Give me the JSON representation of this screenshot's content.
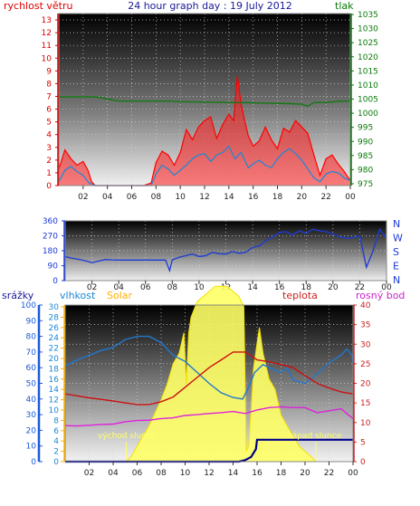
{
  "chart_data": [
    {
      "type": "line",
      "title": "24 hour graph day : 19 July 2012",
      "left_axis_title": "rychlost větru",
      "right_axis_title": "tlak",
      "y_left_ticks": [
        "0",
        "1",
        "2",
        "3",
        "4",
        "5",
        "6",
        "7",
        "8",
        "9",
        "10",
        "11",
        "12",
        "13"
      ],
      "y_right_ticks": [
        "975",
        "980",
        "985",
        "990",
        "995",
        "1000",
        "1005",
        "1010",
        "1015",
        "1020",
        "1025",
        "1030",
        "1035"
      ],
      "x_ticks": [
        "02",
        "04",
        "06",
        "08",
        "10",
        "12",
        "14",
        "16",
        "18",
        "20",
        "22",
        "00"
      ],
      "ylim_left": [
        0,
        13.5
      ],
      "ylim_right": [
        975,
        1035
      ],
      "xlim_hours": [
        0,
        24
      ],
      "grid": true,
      "colors": {
        "gust": "#ff0000",
        "avg_wind": "#1a88d8",
        "pressure": "#127a12",
        "left_axis": "#dd0000",
        "right_axis": "#0a7a0a"
      },
      "series": [
        {
          "name": "gust",
          "x": [
            0,
            0.5,
            1,
            1.5,
            2,
            2.4,
            2.7,
            3,
            4,
            5,
            6,
            7,
            7.6,
            8,
            8.5,
            9,
            9.5,
            10,
            10.5,
            11,
            11.5,
            12,
            12.5,
            13,
            13.5,
            14,
            14.4,
            14.7,
            15,
            15.3,
            15.6,
            16,
            16.5,
            17,
            17.5,
            18,
            18.5,
            19,
            19.5,
            20,
            20.5,
            21,
            21.5,
            22,
            22.5,
            23,
            23.5,
            24
          ],
          "y": [
            1.3,
            2.8,
            2.1,
            1.6,
            1.9,
            1.2,
            0.3,
            0,
            0,
            0,
            0,
            0,
            0.2,
            1.8,
            2.7,
            2.4,
            1.6,
            2.6,
            4.4,
            3.6,
            4.6,
            5.1,
            5.4,
            3.7,
            4.8,
            5.6,
            5.1,
            8.6,
            6.4,
            5.1,
            3.9,
            3.1,
            3.5,
            4.6,
            3.6,
            2.9,
            4.5,
            4.2,
            5.1,
            4.6,
            4.1,
            2.4,
            0.8,
            2.1,
            2.4,
            1.7,
            1.1,
            0.4
          ]
        },
        {
          "name": "avg_wind",
          "x": [
            0,
            0.5,
            1,
            1.5,
            2,
            2.5,
            3,
            4,
            5,
            6,
            7,
            7.6,
            8,
            8.5,
            9,
            9.5,
            10,
            10.5,
            11,
            11.5,
            12,
            12.5,
            13,
            13.5,
            14,
            14.5,
            15,
            15.3,
            15.6,
            16,
            16.5,
            17,
            17.5,
            18,
            18.5,
            19,
            19.5,
            20,
            20.5,
            21,
            21.5,
            22,
            22.5,
            23,
            23.5,
            24
          ],
          "y": [
            0.3,
            1.2,
            1.5,
            1.1,
            0.8,
            0.2,
            0,
            0,
            0,
            0,
            0,
            0,
            0.9,
            1.6,
            1.3,
            0.8,
            1.2,
            1.6,
            2.1,
            2.4,
            2.5,
            1.9,
            2.4,
            2.6,
            3.1,
            2.1,
            2.6,
            2.0,
            1.4,
            1.7,
            2.0,
            1.6,
            1.4,
            2.1,
            2.6,
            2.9,
            2.5,
            2.0,
            1.3,
            0.6,
            0.3,
            0.9,
            1.1,
            1.0,
            0.6,
            0.4
          ]
        },
        {
          "name": "pressure",
          "x": [
            0,
            3,
            5,
            7,
            9,
            10,
            11,
            14,
            16,
            17,
            19,
            20,
            20.5,
            21,
            22,
            23,
            24
          ],
          "y": [
            1005.8,
            1005.8,
            1004.3,
            1004.3,
            1004.3,
            1004.1,
            1004,
            1003.8,
            1003.7,
            1003.6,
            1003.4,
            1003.2,
            1002.5,
            1003.8,
            1003.8,
            1004.2,
            1004.4
          ]
        }
      ]
    },
    {
      "type": "line",
      "right_axis_labels": [
        "N",
        "W",
        "S",
        "E",
        "N"
      ],
      "y_left_ticks": [
        "0",
        "90",
        "180",
        "270",
        "360"
      ],
      "x_ticks": [
        "02",
        "04",
        "06",
        "08",
        "10",
        "12",
        "14",
        "16",
        "18",
        "20",
        "22",
        "00"
      ],
      "ylim": [
        0,
        360
      ],
      "xlim_hours": [
        0,
        24
      ],
      "grid": true,
      "colors": {
        "direction": "#1a3ad8"
      },
      "series": [
        {
          "name": "wind_direction",
          "x": [
            0,
            0.5,
            1,
            1.5,
            2,
            2.5,
            3,
            3.5,
            4,
            4.5,
            5,
            5.5,
            6,
            6.5,
            7,
            7.5,
            7.8,
            8,
            8.5,
            9,
            9.5,
            10,
            10.5,
            11,
            11.5,
            12,
            12.5,
            13,
            13.5,
            14,
            14.5,
            15,
            15.3,
            15.6,
            16,
            16.5,
            17,
            17.5,
            18,
            18.5,
            19,
            19.5,
            20,
            20.5,
            21,
            21.5,
            22,
            22.5,
            23,
            23.5,
            24
          ],
          "y": [
            145,
            135,
            128,
            120,
            108,
            118,
            127,
            125,
            124,
            124,
            124,
            124,
            124,
            124,
            124,
            124,
            60,
            125,
            140,
            150,
            160,
            145,
            150,
            170,
            162,
            160,
            175,
            165,
            172,
            200,
            210,
            240,
            255,
            268,
            290,
            295,
            275,
            300,
            285,
            310,
            300,
            295,
            280,
            265,
            255,
            260,
            270,
            80,
            180,
            310,
            255
          ]
        }
      ]
    },
    {
      "type": "area",
      "header_labels": {
        "rain": "srážky",
        "humidity": "vlhkost",
        "solar": "Solar",
        "temperature": "teplota",
        "dew_point": "rosný bod"
      },
      "sunrise_label": "východ slunce",
      "sunset_label": "západ slunce",
      "y_rain_ticks": [
        "0",
        "10",
        "20",
        "30",
        "40",
        "50",
        "60",
        "70",
        "80",
        "90",
        "100"
      ],
      "y_mid_ticks": [
        "0",
        "2",
        "4",
        "6",
        "8",
        "10",
        "12",
        "14",
        "16",
        "18",
        "20",
        "22",
        "24",
        "26",
        "28",
        "30"
      ],
      "y_right_ticks": [
        "0",
        "5",
        "10",
        "15",
        "20",
        "25",
        "30",
        "35",
        "40"
      ],
      "x_ticks": [
        "02",
        "04",
        "06",
        "08",
        "10",
        "12",
        "14",
        "16",
        "18",
        "20",
        "22",
        "00"
      ],
      "ylim_percent": [
        0,
        100
      ],
      "ylim_temperature": [
        0,
        40
      ],
      "xlim_hours": [
        0,
        24
      ],
      "sunrise_hour": 5.1,
      "sunset_hour": 20.9,
      "grid": true,
      "colors": {
        "humidity": "#2078d0",
        "solar": "#ffff66",
        "temperature": "#cc1111",
        "dew_point": "#dd22dd",
        "rain": "#00008b",
        "rain_axis": "#1a5ad8",
        "humidity_axis": "#1a88d8",
        "solar_axis": "#ffb000",
        "temperature_axis": "#cc2222",
        "dew_axis": "#cc22cc"
      },
      "series": [
        {
          "name": "humidity",
          "x": [
            0,
            1,
            2,
            3,
            4,
            5,
            6,
            7,
            8,
            9,
            10,
            11,
            12,
            13,
            14,
            14.8,
            15.2,
            15.8,
            16.5,
            17,
            18,
            18.5,
            19,
            20,
            21,
            22,
            23,
            23.5,
            23.9,
            24
          ],
          "y": [
            61,
            65,
            68,
            71,
            73,
            78,
            80,
            80,
            76,
            68,
            64,
            57,
            50,
            44,
            41,
            40,
            46,
            57,
            62,
            60,
            57,
            60,
            52,
            50,
            56,
            63,
            68,
            72,
            68,
            63
          ]
        },
        {
          "name": "solar",
          "x": [
            5.1,
            5.5,
            6,
            7,
            8,
            8.5,
            9,
            9.5,
            9.9,
            10.1,
            10.3,
            10.5,
            11,
            11.5,
            12,
            12.5,
            13,
            13.5,
            14,
            14.5,
            14.9,
            15.1,
            15.3,
            15.5,
            15.7,
            16,
            16.2,
            16.5,
            17,
            17.5,
            18,
            18.5,
            19,
            19.5,
            20,
            20.5,
            20.9
          ],
          "y": [
            0,
            1,
            3,
            7,
            12,
            15,
            19,
            21,
            25,
            15,
            25,
            28,
            31,
            32,
            33,
            34,
            34,
            34,
            33,
            32,
            30,
            2,
            3,
            10,
            18,
            23,
            26,
            21,
            16,
            14,
            9,
            7,
            5,
            3,
            2,
            1,
            0
          ]
        },
        {
          "name": "temperature",
          "x": [
            0,
            1,
            2,
            3,
            4,
            5,
            6,
            7,
            8,
            9,
            10,
            11,
            12,
            13,
            14,
            15,
            16,
            17,
            18,
            19,
            20,
            21,
            22,
            23,
            24
          ],
          "y": [
            17.3,
            16.8,
            16.3,
            15.9,
            15.5,
            15.0,
            14.6,
            14.6,
            15.3,
            16.5,
            19.0,
            21.5,
            24.0,
            26.0,
            28.0,
            28.0,
            26.0,
            25.5,
            24.8,
            24.0,
            22.0,
            20.0,
            18.8,
            17.8,
            17.3
          ]
        },
        {
          "name": "dew_point",
          "x": [
            0,
            1,
            2,
            3,
            4,
            5,
            6,
            7,
            8,
            9,
            10,
            11,
            12,
            13,
            14,
            15,
            16,
            17,
            18,
            19,
            20,
            21,
            22,
            23,
            24
          ],
          "y": [
            9.2,
            9.1,
            9.3,
            9.5,
            9.6,
            10.2,
            10.5,
            10.6,
            11.0,
            11.2,
            11.8,
            12.0,
            12.3,
            12.5,
            12.8,
            12.3,
            13.2,
            13.8,
            14.0,
            13.8,
            13.8,
            12.5,
            13.0,
            13.5,
            11.0
          ]
        },
        {
          "name": "rain",
          "x": [
            0,
            14.5,
            15,
            15.5,
            15.9,
            16,
            24
          ],
          "y": [
            0,
            0,
            1,
            3,
            8,
            14,
            14
          ]
        }
      ]
    }
  ]
}
